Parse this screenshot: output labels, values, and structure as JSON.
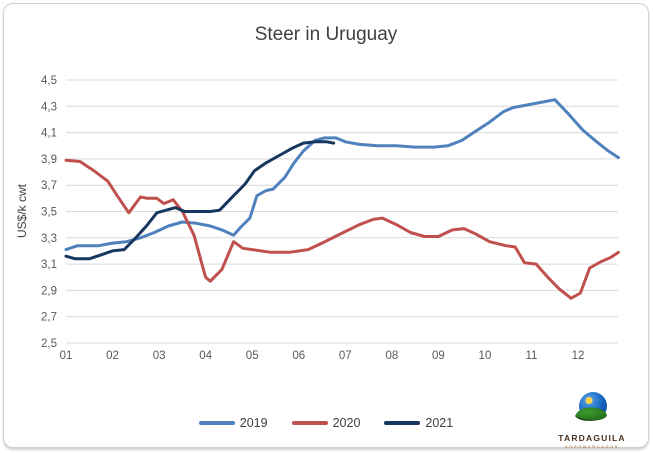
{
  "frame": {
    "background": "#ffffff",
    "border_color": "#cfcfcf"
  },
  "chart_data": {
    "type": "line",
    "title": "Steer in Uruguay",
    "xlabel": "",
    "ylabel": "US$/k cwt",
    "ylim": [
      2.5,
      4.5
    ],
    "xlim_months": [
      1,
      12.9
    ],
    "grid": "horizontal",
    "grid_color": "#d9d9d9",
    "tick_color": "#595959",
    "title_color": "#3f3f3f",
    "legend_position": "bottom",
    "y_ticks": [
      4.5,
      4.3,
      4.1,
      3.9,
      3.7,
      3.5,
      3.3,
      3.1,
      2.9,
      2.7,
      2.5
    ],
    "y_tick_labels": [
      "4,5",
      "4,3",
      "4,1",
      "3,9",
      "3,7",
      "3,5",
      "3,3",
      "3,1",
      "2,9",
      "2,7",
      "2,5"
    ],
    "x_ticks": [
      1,
      2,
      3,
      4,
      5,
      6,
      7,
      8,
      9,
      10,
      11,
      12
    ],
    "x_tick_labels": [
      "01",
      "02",
      "03",
      "04",
      "05",
      "06",
      "07",
      "08",
      "09",
      "10",
      "11",
      "12"
    ],
    "series": [
      {
        "name": "2019",
        "color": "#4F81BD",
        "points": [
          [
            1.0,
            3.21
          ],
          [
            1.25,
            3.24
          ],
          [
            1.7,
            3.24
          ],
          [
            2.0,
            3.26
          ],
          [
            2.3,
            3.27
          ],
          [
            2.6,
            3.3
          ],
          [
            2.9,
            3.34
          ],
          [
            3.2,
            3.39
          ],
          [
            3.5,
            3.42
          ],
          [
            3.8,
            3.41
          ],
          [
            4.1,
            3.39
          ],
          [
            4.35,
            3.36
          ],
          [
            4.6,
            3.32
          ],
          [
            4.75,
            3.38
          ],
          [
            4.95,
            3.45
          ],
          [
            5.1,
            3.62
          ],
          [
            5.3,
            3.66
          ],
          [
            5.45,
            3.67
          ],
          [
            5.7,
            3.76
          ],
          [
            5.9,
            3.87
          ],
          [
            6.1,
            3.96
          ],
          [
            6.35,
            4.04
          ],
          [
            6.55,
            4.06
          ],
          [
            6.8,
            4.06
          ],
          [
            7.0,
            4.03
          ],
          [
            7.3,
            4.01
          ],
          [
            7.7,
            4.0
          ],
          [
            8.1,
            4.0
          ],
          [
            8.5,
            3.99
          ],
          [
            8.9,
            3.99
          ],
          [
            9.2,
            4.0
          ],
          [
            9.5,
            4.04
          ],
          [
            9.8,
            4.11
          ],
          [
            10.1,
            4.18
          ],
          [
            10.4,
            4.26
          ],
          [
            10.6,
            4.29
          ],
          [
            10.9,
            4.31
          ],
          [
            11.2,
            4.33
          ],
          [
            11.5,
            4.35
          ],
          [
            11.8,
            4.24
          ],
          [
            12.1,
            4.12
          ],
          [
            12.4,
            4.03
          ],
          [
            12.65,
            3.96
          ],
          [
            12.87,
            3.91
          ]
        ]
      },
      {
        "name": "2020",
        "color": "#C0504D",
        "points": [
          [
            1.0,
            3.89
          ],
          [
            1.3,
            3.88
          ],
          [
            1.6,
            3.81
          ],
          [
            1.9,
            3.73
          ],
          [
            2.1,
            3.62
          ],
          [
            2.35,
            3.49
          ],
          [
            2.6,
            3.61
          ],
          [
            2.75,
            3.6
          ],
          [
            2.95,
            3.6
          ],
          [
            3.1,
            3.56
          ],
          [
            3.3,
            3.59
          ],
          [
            3.5,
            3.5
          ],
          [
            3.75,
            3.32
          ],
          [
            4.0,
            3.0
          ],
          [
            4.1,
            2.97
          ],
          [
            4.35,
            3.06
          ],
          [
            4.6,
            3.27
          ],
          [
            4.8,
            3.22
          ],
          [
            5.0,
            3.21
          ],
          [
            5.4,
            3.19
          ],
          [
            5.8,
            3.19
          ],
          [
            6.2,
            3.21
          ],
          [
            6.5,
            3.26
          ],
          [
            6.9,
            3.33
          ],
          [
            7.3,
            3.4
          ],
          [
            7.6,
            3.44
          ],
          [
            7.8,
            3.45
          ],
          [
            8.1,
            3.4
          ],
          [
            8.4,
            3.34
          ],
          [
            8.7,
            3.31
          ],
          [
            9.0,
            3.31
          ],
          [
            9.3,
            3.36
          ],
          [
            9.55,
            3.37
          ],
          [
            9.8,
            3.33
          ],
          [
            10.1,
            3.27
          ],
          [
            10.45,
            3.24
          ],
          [
            10.65,
            3.23
          ],
          [
            10.85,
            3.11
          ],
          [
            11.1,
            3.1
          ],
          [
            11.35,
            3.0
          ],
          [
            11.6,
            2.91
          ],
          [
            11.85,
            2.84
          ],
          [
            12.05,
            2.88
          ],
          [
            12.25,
            3.07
          ],
          [
            12.5,
            3.12
          ],
          [
            12.7,
            3.15
          ],
          [
            12.87,
            3.19
          ]
        ]
      },
      {
        "name": "2021",
        "color": "#17375E",
        "points": [
          [
            1.0,
            3.16
          ],
          [
            1.2,
            3.14
          ],
          [
            1.5,
            3.14
          ],
          [
            1.75,
            3.17
          ],
          [
            2.0,
            3.2
          ],
          [
            2.25,
            3.21
          ],
          [
            2.5,
            3.3
          ],
          [
            2.75,
            3.4
          ],
          [
            2.95,
            3.49
          ],
          [
            3.15,
            3.51
          ],
          [
            3.35,
            3.53
          ],
          [
            3.55,
            3.5
          ],
          [
            3.8,
            3.5
          ],
          [
            4.1,
            3.5
          ],
          [
            4.3,
            3.51
          ],
          [
            4.6,
            3.62
          ],
          [
            4.85,
            3.71
          ],
          [
            5.05,
            3.81
          ],
          [
            5.3,
            3.87
          ],
          [
            5.6,
            3.93
          ],
          [
            5.85,
            3.98
          ],
          [
            6.1,
            4.02
          ],
          [
            6.35,
            4.03
          ],
          [
            6.6,
            4.03
          ],
          [
            6.75,
            4.02
          ]
        ]
      }
    ]
  },
  "branding": {
    "logo_text": "TARDAGUILA",
    "logo_subtext": "AGROMERCADOS"
  }
}
